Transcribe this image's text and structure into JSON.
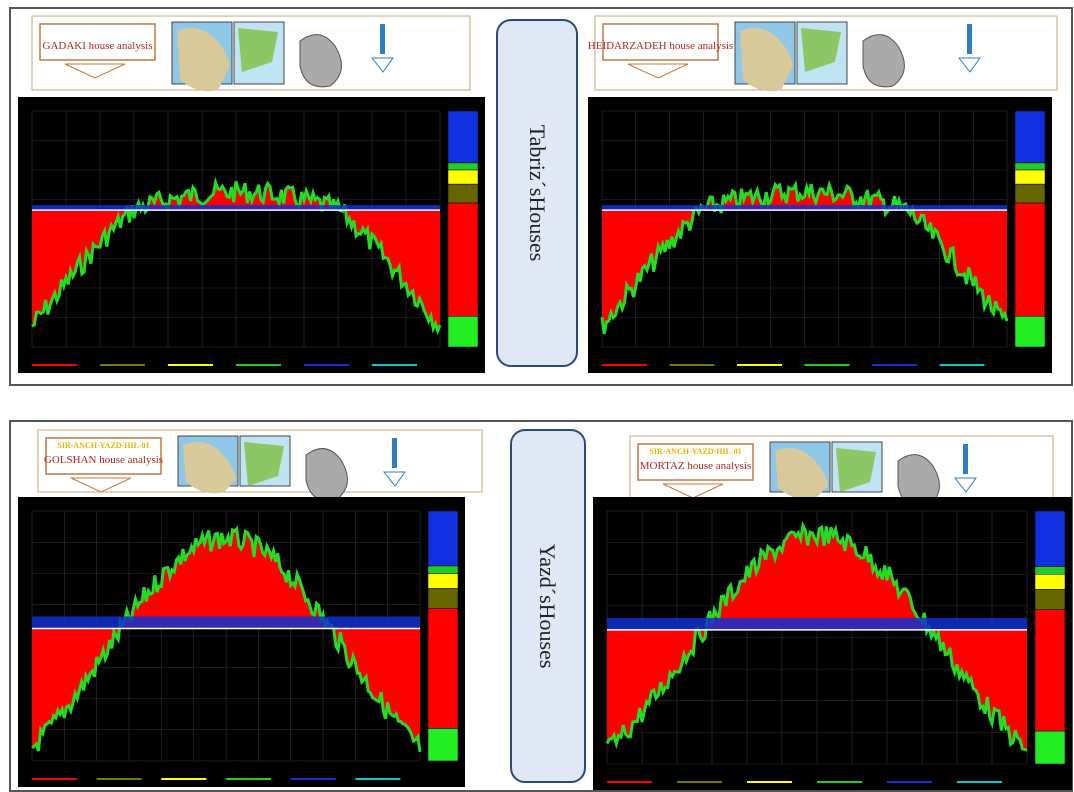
{
  "groups": [
    {
      "label": "Tabriz´sHouses"
    },
    {
      "label": "Yazd´sHouses"
    }
  ],
  "panels": [
    {
      "title": "GADAKI house analysis"
    },
    {
      "title": "HEIDARZADEH house analysis"
    },
    {
      "code": "SIR-ANCH-YAZD-HIL-01",
      "title": "GOLSHAN house analysis"
    },
    {
      "code": "SIR-ANCH-YAZD-HIL-01",
      "title": "MORTAZ house analysis"
    }
  ]
}
